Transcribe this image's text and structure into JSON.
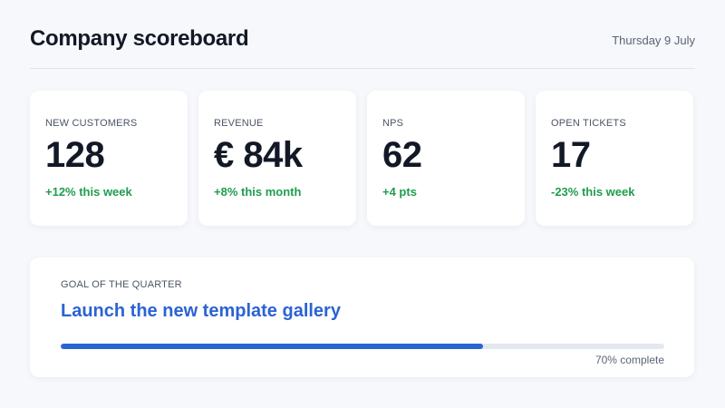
{
  "header": {
    "title": "Company scoreboard",
    "date": "Thursday 9 July"
  },
  "cards": [
    {
      "label": "New customers",
      "value": "128",
      "delta": "+12% this week"
    },
    {
      "label": "Revenue",
      "value": "€ 84k",
      "delta": "+8% this month"
    },
    {
      "label": "NPS",
      "value": "62",
      "delta": "+4 pts"
    },
    {
      "label": "Open tickets",
      "value": "17",
      "delta": "-23% this week"
    }
  ],
  "goal": {
    "label": "Goal of the quarter",
    "title": "Launch the new template gallery",
    "progress": {
      "value": 70,
      "label": "70% complete"
    }
  }
}
